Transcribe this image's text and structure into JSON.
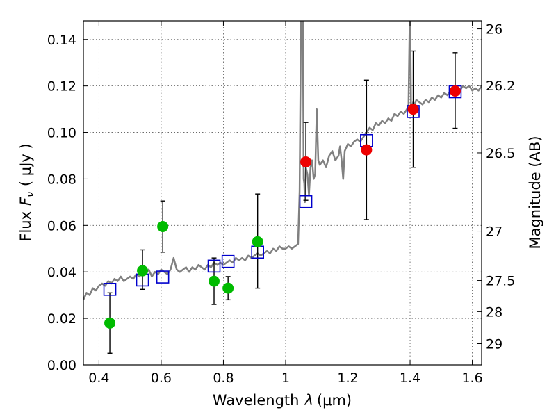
{
  "chart_data": {
    "type": "scatter",
    "title": "",
    "xlabel_prefix": "Wavelength",
    "xlabel_symbol": "λ",
    "xlabel_unit": "(μm)",
    "ylabel_prefix": "Flux",
    "ylabel_symbol_main": "F",
    "ylabel_symbol_sub": "ν",
    "ylabel_unit": "( μJy )",
    "y2label": "Magnitude (AB)",
    "xlim": [
      0.35,
      1.63
    ],
    "ylim": [
      0.0,
      0.148
    ],
    "grid": true,
    "xticks": [
      0.4,
      0.6,
      0.8,
      1.0,
      1.2,
      1.4,
      1.6
    ],
    "xtick_labels": [
      "0.4",
      "0.6",
      "0.8",
      "1",
      "1.2",
      "1.4",
      "1.6"
    ],
    "yticks": [
      0.0,
      0.02,
      0.04,
      0.06,
      0.08,
      0.1,
      0.12,
      0.14
    ],
    "ytick_labels": [
      "0.00",
      "0.02",
      "0.04",
      "0.06",
      "0.08",
      "0.10",
      "0.12",
      "0.14"
    ],
    "mag_ticks": [
      26,
      26.2,
      26.5,
      27,
      27.5,
      28,
      29
    ],
    "mag_tick_labels": [
      "26",
      "26.2",
      "26.5",
      "27",
      "27.5",
      "28",
      "29"
    ],
    "colors": {
      "template": "#808080",
      "model": "#0000cc",
      "optical": "#00bb00",
      "nir": "#ee0000",
      "errorbar": "#000000",
      "grid": "#555555"
    },
    "series": [
      {
        "name": "template_sed",
        "kind": "line",
        "x": [
          0.35,
          0.36,
          0.37,
          0.38,
          0.39,
          0.4,
          0.41,
          0.42,
          0.43,
          0.44,
          0.45,
          0.46,
          0.47,
          0.48,
          0.49,
          0.5,
          0.51,
          0.52,
          0.53,
          0.54,
          0.55,
          0.56,
          0.57,
          0.58,
          0.59,
          0.6,
          0.61,
          0.62,
          0.63,
          0.64,
          0.65,
          0.66,
          0.67,
          0.68,
          0.69,
          0.7,
          0.71,
          0.72,
          0.73,
          0.74,
          0.75,
          0.76,
          0.77,
          0.78,
          0.79,
          0.8,
          0.81,
          0.82,
          0.83,
          0.84,
          0.85,
          0.86,
          0.87,
          0.88,
          0.89,
          0.9,
          0.91,
          0.92,
          0.93,
          0.94,
          0.95,
          0.96,
          0.97,
          0.98,
          0.99,
          1.0,
          1.01,
          1.02,
          1.03,
          1.04,
          1.045,
          1.05,
          1.055,
          1.058,
          1.06,
          1.062,
          1.065,
          1.07,
          1.075,
          1.08,
          1.085,
          1.09,
          1.095,
          1.1,
          1.105,
          1.11,
          1.12,
          1.13,
          1.14,
          1.15,
          1.16,
          1.17,
          1.175,
          1.18,
          1.185,
          1.19,
          1.2,
          1.21,
          1.22,
          1.23,
          1.24,
          1.25,
          1.26,
          1.27,
          1.28,
          1.29,
          1.3,
          1.31,
          1.32,
          1.33,
          1.34,
          1.35,
          1.36,
          1.37,
          1.38,
          1.39,
          1.395,
          1.4,
          1.403,
          1.406,
          1.41,
          1.415,
          1.42,
          1.43,
          1.44,
          1.45,
          1.46,
          1.47,
          1.48,
          1.49,
          1.5,
          1.51,
          1.52,
          1.53,
          1.54,
          1.55,
          1.56,
          1.57,
          1.58,
          1.59,
          1.6,
          1.61,
          1.62,
          1.63
        ],
        "y": [
          0.028,
          0.031,
          0.03,
          0.033,
          0.032,
          0.034,
          0.035,
          0.034,
          0.036,
          0.035,
          0.037,
          0.036,
          0.038,
          0.036,
          0.037,
          0.038,
          0.037,
          0.039,
          0.038,
          0.04,
          0.039,
          0.041,
          0.038,
          0.04,
          0.039,
          0.041,
          0.04,
          0.039,
          0.041,
          0.046,
          0.041,
          0.04,
          0.041,
          0.042,
          0.04,
          0.042,
          0.041,
          0.043,
          0.042,
          0.041,
          0.043,
          0.042,
          0.044,
          0.043,
          0.044,
          0.043,
          0.044,
          0.045,
          0.044,
          0.046,
          0.045,
          0.046,
          0.045,
          0.047,
          0.046,
          0.047,
          0.048,
          0.047,
          0.048,
          0.049,
          0.048,
          0.05,
          0.049,
          0.051,
          0.05,
          0.05,
          0.051,
          0.05,
          0.051,
          0.052,
          0.075,
          0.16,
          0.16,
          0.08,
          0.078,
          0.07,
          0.085,
          0.082,
          0.073,
          0.085,
          0.088,
          0.08,
          0.082,
          0.11,
          0.088,
          0.086,
          0.088,
          0.085,
          0.09,
          0.092,
          0.088,
          0.09,
          0.094,
          0.088,
          0.08,
          0.092,
          0.095,
          0.094,
          0.096,
          0.097,
          0.096,
          0.098,
          0.1,
          0.102,
          0.101,
          0.104,
          0.103,
          0.105,
          0.104,
          0.106,
          0.105,
          0.108,
          0.107,
          0.109,
          0.108,
          0.11,
          0.112,
          0.16,
          0.112,
          0.111,
          0.113,
          0.112,
          0.114,
          0.113,
          0.112,
          0.114,
          0.113,
          0.115,
          0.114,
          0.116,
          0.115,
          0.117,
          0.116,
          0.118,
          0.117,
          0.119,
          0.118,
          0.12,
          0.119,
          0.12,
          0.118,
          0.119,
          0.118,
          0.12
        ]
      },
      {
        "name": "model_photometry",
        "kind": "open_square",
        "x": [
          0.435,
          0.54,
          0.605,
          0.77,
          0.815,
          0.91,
          1.065,
          1.26,
          1.41,
          1.545
        ],
        "y": [
          0.0325,
          0.0365,
          0.0378,
          0.0425,
          0.0445,
          0.0485,
          0.0702,
          0.0965,
          0.109,
          0.1175
        ]
      },
      {
        "name": "observed_optical",
        "kind": "filled_circle",
        "x": [
          0.435,
          0.54,
          0.605,
          0.77,
          0.815,
          0.91
        ],
        "y": [
          0.018,
          0.0405,
          0.0595,
          0.036,
          0.033,
          0.053
        ],
        "yerr_low": [
          0.013,
          0.008,
          0.011,
          0.01,
          0.005,
          0.02
        ],
        "yerr_high": [
          0.013,
          0.009,
          0.011,
          0.01,
          0.005,
          0.0205
        ]
      },
      {
        "name": "observed_nir",
        "kind": "filled_circle",
        "x": [
          1.065,
          1.26,
          1.41,
          1.545
        ],
        "y": [
          0.0873,
          0.0925,
          0.11,
          0.1178
        ],
        "yerr_low": [
          0.0165,
          0.03,
          0.025,
          0.016
        ],
        "yerr_high": [
          0.017,
          0.03,
          0.025,
          0.0165
        ]
      }
    ]
  }
}
